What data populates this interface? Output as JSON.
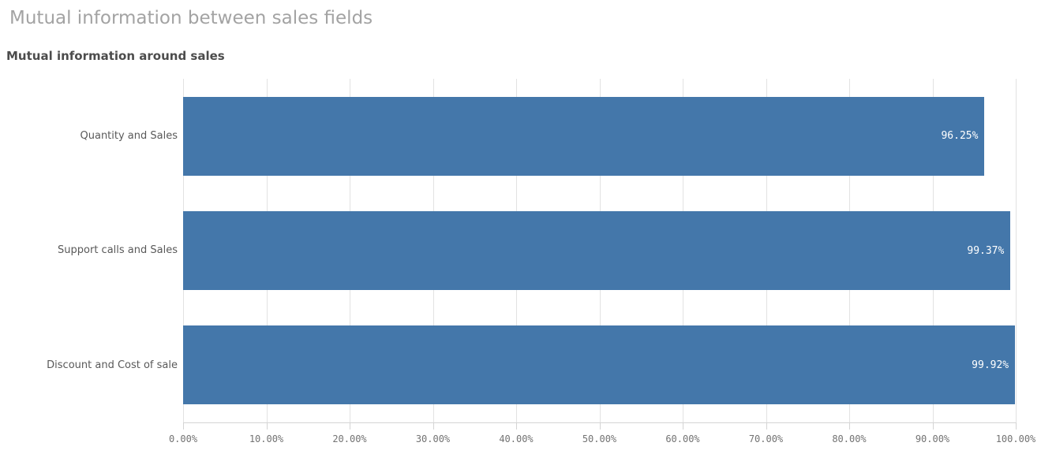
{
  "page": {
    "title": "Mutual information between sales fields",
    "subtitle": "Mutual information around sales"
  },
  "chart_data": {
    "type": "bar",
    "orientation": "horizontal",
    "title": "Mutual information around sales",
    "categories": [
      "Quantity and Sales",
      "Support calls and Sales",
      "Discount and Cost of sale"
    ],
    "values": [
      96.25,
      99.37,
      99.92
    ],
    "value_labels": [
      "96.25%",
      "99.37%",
      "99.92%"
    ],
    "xlabel": "",
    "ylabel": "",
    "xlim": [
      0,
      100
    ],
    "x_ticks": [
      0,
      10,
      20,
      30,
      40,
      50,
      60,
      70,
      80,
      90,
      100
    ],
    "x_tick_labels": [
      "0.00%",
      "10.00%",
      "20.00%",
      "30.00%",
      "40.00%",
      "50.00%",
      "60.00%",
      "70.00%",
      "80.00%",
      "90.00%",
      "100.00%"
    ],
    "grid": "vertical-on",
    "legend": "none",
    "colors": {
      "bar": "#4477aa",
      "value_label": "#ffffff",
      "gridline": "#e2e2e2",
      "axis_line": "#d4d4d4",
      "tick_label": "#737373",
      "category_label": "#595959",
      "title": "#a3a3a3",
      "subtitle": "#4c4c4c"
    }
  }
}
